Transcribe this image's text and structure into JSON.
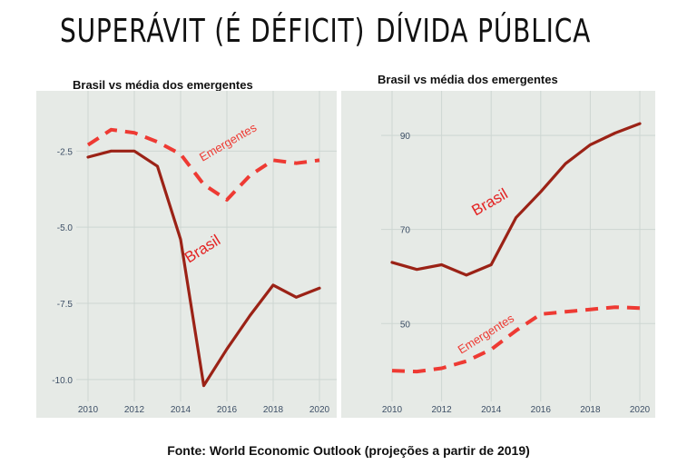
{
  "source": "Fonte: World Economic Outlook (projeções a partir de 2019)",
  "chart_data": [
    {
      "type": "line",
      "title": "SUPERÁVIT (É DÉFICIT)",
      "subtitle": "Brasil vs média dos emergentes",
      "x": [
        2010,
        2011,
        2012,
        2013,
        2014,
        2015,
        2016,
        2017,
        2018,
        2019,
        2020
      ],
      "xticks": [
        2010,
        2012,
        2014,
        2016,
        2018,
        2020
      ],
      "yticks": [
        -2.5,
        -5.0,
        -7.5,
        -10.0
      ],
      "ytick_labels": [
        "-2.5",
        "-5.0",
        "-7.5",
        "-10.0"
      ],
      "xlim": [
        2010,
        2020
      ],
      "ylim": [
        -10.6,
        -1.0
      ],
      "grid": true,
      "background": "#e6eae6",
      "series": [
        {
          "name": "Brasil",
          "style": "solid",
          "color": "#9b2216",
          "label_color": "#e32222",
          "values": [
            -2.7,
            -2.5,
            -2.5,
            -3.0,
            -5.4,
            -10.2,
            -9.0,
            -7.9,
            -6.9,
            -7.3,
            -7.0
          ]
        },
        {
          "name": "Emergentes",
          "style": "dashed",
          "color": "#ee3a33",
          "label_color": "#ee3a33",
          "values": [
            -2.3,
            -1.8,
            -1.9,
            -2.2,
            -2.6,
            -3.6,
            -4.1,
            -3.3,
            -2.8,
            -2.9,
            -2.8
          ]
        }
      ]
    },
    {
      "type": "line",
      "title": "DÍVIDA PÚBLICA",
      "subtitle": "Brasil vs média dos emergentes",
      "x": [
        2010,
        2011,
        2012,
        2013,
        2014,
        2015,
        2016,
        2017,
        2018,
        2019,
        2020
      ],
      "xticks": [
        2010,
        2012,
        2014,
        2016,
        2018,
        2020
      ],
      "yticks": [
        90,
        70,
        50
      ],
      "ytick_labels": [
        "90",
        "70",
        "50"
      ],
      "xlim": [
        2010,
        2020
      ],
      "ylim": [
        37.7,
        96
      ],
      "grid": true,
      "background": "#e6eae6",
      "series": [
        {
          "name": "Brasil",
          "style": "solid",
          "color": "#9b2216",
          "label_color": "#e32222",
          "values": [
            63.0,
            61.5,
            62.5,
            60.3,
            62.5,
            72.5,
            78.0,
            84.0,
            88.0,
            90.5,
            92.5
          ]
        },
        {
          "name": "Emergentes",
          "style": "dashed",
          "color": "#ee3a33",
          "label_color": "#ee3a33",
          "values": [
            40.0,
            39.8,
            40.5,
            42.0,
            44.5,
            48.5,
            52.0,
            52.5,
            53.0,
            53.5,
            53.3
          ]
        }
      ]
    }
  ]
}
